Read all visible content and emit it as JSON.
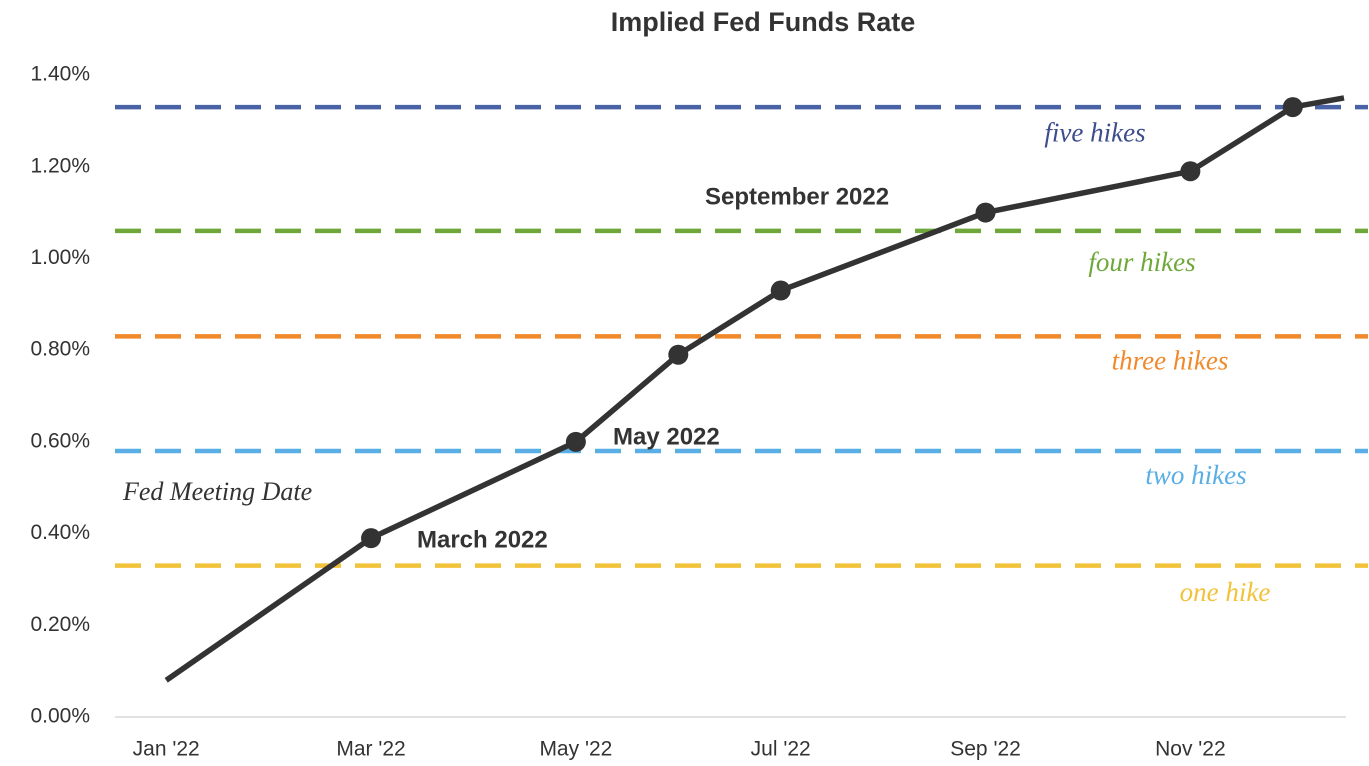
{
  "chart_data": {
    "type": "line",
    "title": "Implied Fed Funds Rate",
    "x": [
      0,
      2,
      4,
      5,
      6,
      8,
      10,
      11,
      11.5
    ],
    "series": [
      {
        "name": "Implied Fed Funds Rate",
        "color": "#333333",
        "values": [
          0.08,
          0.39,
          0.6,
          0.79,
          0.93,
          1.1,
          1.19,
          1.33,
          1.35
        ],
        "markers": [
          false,
          true,
          true,
          true,
          true,
          true,
          true,
          true,
          false
        ]
      }
    ],
    "xlim": [
      -0.5,
      11.5
    ],
    "xticks": [
      {
        "value": 0,
        "label": "Jan '22"
      },
      {
        "value": 2,
        "label": "Mar '22"
      },
      {
        "value": 4,
        "label": "May '22"
      },
      {
        "value": 6,
        "label": "Jul '22"
      },
      {
        "value": 8,
        "label": "Sep '22"
      },
      {
        "value": 10,
        "label": "Nov '22"
      }
    ],
    "ylim": [
      0,
      1.4
    ],
    "yticks": [
      {
        "value": 0,
        "label": "0.00%"
      },
      {
        "value": 0.2,
        "label": "0.20%"
      },
      {
        "value": 0.4,
        "label": "0.40%"
      },
      {
        "value": 0.6,
        "label": "0.60%"
      },
      {
        "value": 0.8,
        "label": "0.80%"
      },
      {
        "value": 1.0,
        "label": "1.00%"
      },
      {
        "value": 1.2,
        "label": "1.20%"
      },
      {
        "value": 1.4,
        "label": "1.40%"
      }
    ],
    "grid": false,
    "reference_lines": [
      {
        "name": "five hikes",
        "value": 1.33,
        "color": "#4a62a6",
        "label_color": "#3c4c8c"
      },
      {
        "name": "four hikes",
        "value": 1.06,
        "color": "#6fa83a",
        "label_color": "#6fa83a"
      },
      {
        "name": "three hikes",
        "value": 0.83,
        "color": "#f0892a",
        "label_color": "#f0892a"
      },
      {
        "name": "two hikes",
        "value": 0.58,
        "color": "#5aaee6",
        "label_color": "#5aaee6"
      },
      {
        "name": "one hike",
        "value": 0.33,
        "color": "#f2c23a",
        "label_color": "#f2c23a"
      }
    ],
    "annotations": [
      "March 2022",
      "May 2022",
      "September 2022",
      "Fed Meeting Date"
    ]
  }
}
